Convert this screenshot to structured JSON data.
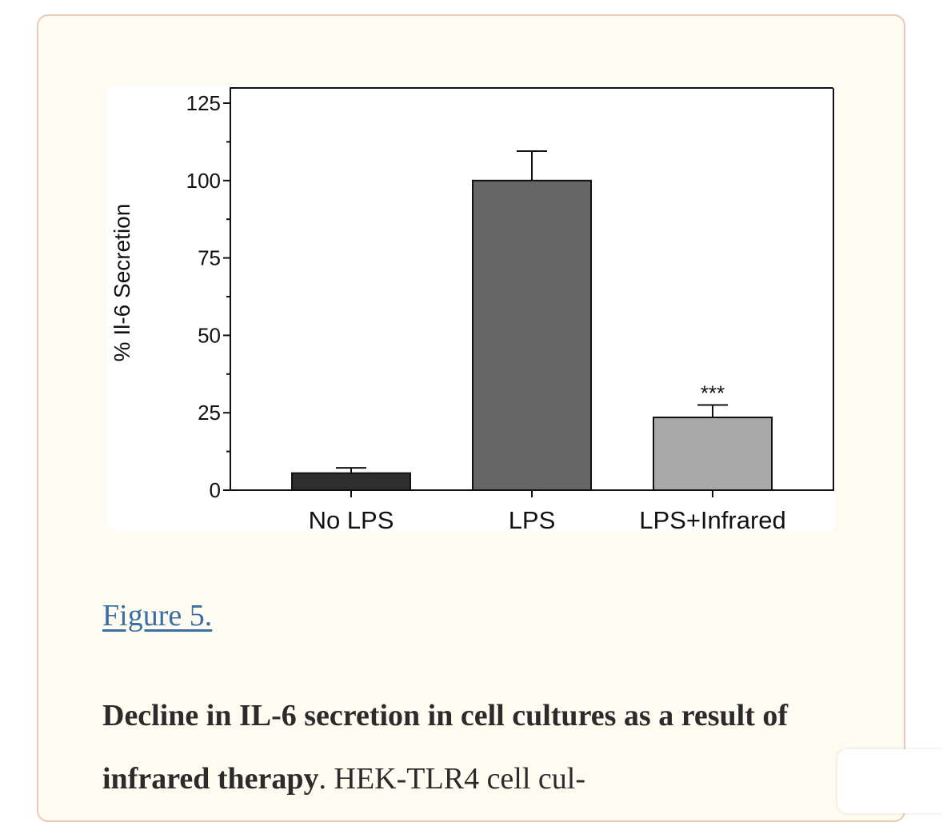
{
  "figure": {
    "link_label": "Figure 5.",
    "caption_bold": "Decline in IL-6 secretion in cell cultures as a result of infrared therapy",
    "caption_rest": ". HEK-TLR4 cell cul-"
  },
  "chart_data": {
    "type": "bar",
    "title": "",
    "xlabel": "",
    "ylabel": "% Il-6 Secretion",
    "ylim": [
      0,
      125
    ],
    "yticks": [
      0,
      25,
      50,
      75,
      100,
      125
    ],
    "categories": [
      "No LPS",
      "LPS",
      "LPS+Infrared"
    ],
    "values": [
      5.5,
      100,
      23.5
    ],
    "errors": [
      1.7,
      9.5,
      4
    ],
    "bar_colors": [
      "#2e2e2e",
      "#666666",
      "#a9a9a9"
    ],
    "annotations": [
      {
        "category": "LPS+Infrared",
        "text": "***"
      }
    ],
    "grid": false,
    "legend": "none"
  }
}
